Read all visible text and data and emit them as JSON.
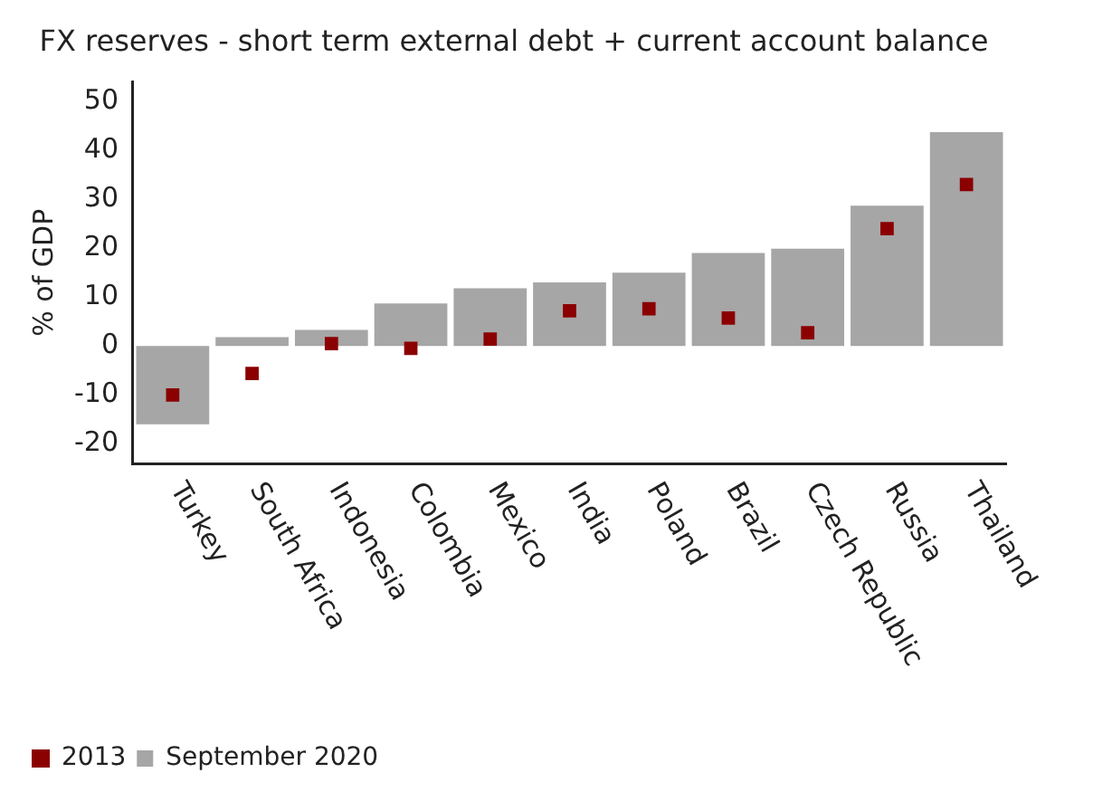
{
  "chart_data": {
    "type": "bar",
    "title": "FX reserves - short term external debt + current account balance",
    "ylabel": "% of GDP",
    "categories": [
      "Turkey",
      "South Africa",
      "Indonesia",
      "Colombia",
      "Mexico",
      "India",
      "Poland",
      "Brazil",
      "Czech Republic",
      "Russia",
      "Thailand"
    ],
    "series": [
      {
        "name": "2013",
        "type": "scatter",
        "color": "#8b0000",
        "x": [
          "Turkey",
          "South Africa",
          "Indonesia",
          "Colombia",
          "Mexico",
          "India",
          "Poland",
          "Brazil",
          "Czech Republic",
          "Russia",
          "Thailand"
        ],
        "values": [
          -10,
          -5.6,
          0.5,
          -0.5,
          1.4,
          7.2,
          7.6,
          5.7,
          2.7,
          24,
          33
        ]
      },
      {
        "name": "September 2020",
        "color": "#a6a6a6",
        "values": [
          -16,
          1.8,
          3.3,
          8.7,
          11.8,
          13,
          15,
          19,
          19.9,
          28.7,
          43.7
        ]
      }
    ],
    "ylim": [
      -24,
      54
    ],
    "yticks": [
      -20,
      -10,
      0,
      10,
      20,
      30,
      40,
      50
    ],
    "grid": false,
    "legend": "bottom left",
    "marker": "square"
  }
}
